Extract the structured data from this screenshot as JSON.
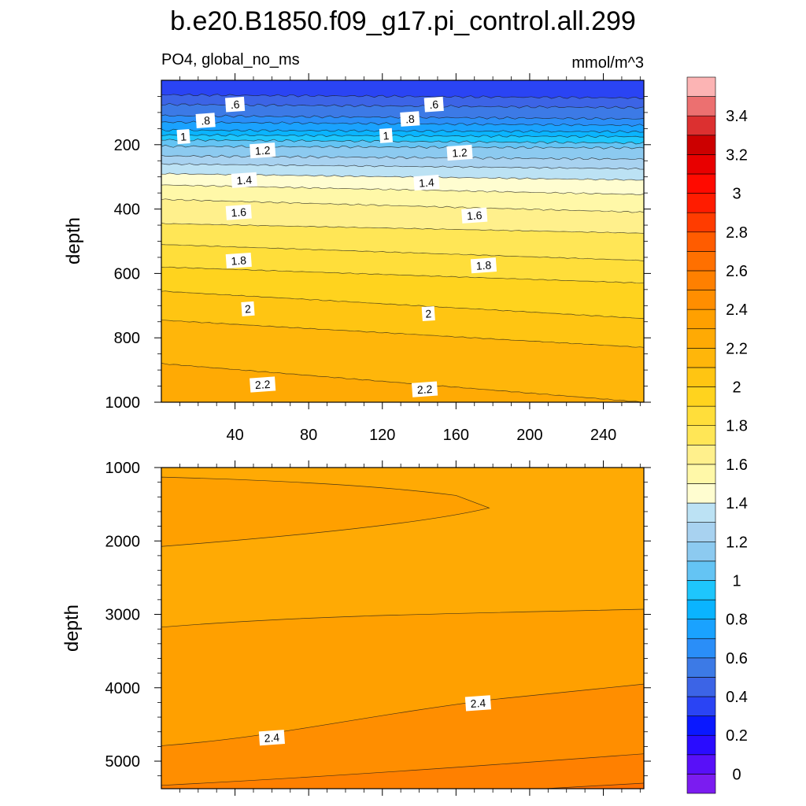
{
  "chart_data": {
    "type": "contour",
    "title": "b.e20.B1850.f09_g17.pi_control.all.299",
    "left_subtitle": "PO4, global_no_ms",
    "right_subtitle": "mmol/m^3",
    "ylabel": "depth",
    "xlim": [
      0,
      262
    ],
    "x_ticks": [
      "40",
      "80",
      "120",
      "160",
      "200",
      "240"
    ],
    "x_tick_values": [
      40,
      80,
      120,
      160,
      200,
      240
    ],
    "upper_panel": {
      "ylim": [
        0,
        1000
      ],
      "y_ticks": [
        "200",
        "400",
        "600",
        "800",
        "1000"
      ],
      "y_tick_values": [
        200,
        400,
        600,
        800,
        1000
      ],
      "contour_levels": [
        0.6,
        0.8,
        1.0,
        1.2,
        1.4,
        1.6,
        1.8,
        2.0,
        2.2
      ],
      "contour_depth_at_x0_x262": [
        [
          0.4,
          45,
          55
        ],
        [
          0.5,
          75,
          85
        ],
        [
          0.6,
          110,
          120
        ],
        [
          0.7,
          130,
          140
        ],
        [
          0.8,
          155,
          160
        ],
        [
          0.9,
          170,
          175
        ],
        [
          1.0,
          185,
          195
        ],
        [
          1.1,
          205,
          210
        ],
        [
          1.2,
          235,
          245
        ],
        [
          1.3,
          260,
          275
        ],
        [
          1.4,
          290,
          310
        ],
        [
          1.5,
          325,
          355
        ],
        [
          1.6,
          370,
          410
        ],
        [
          1.7,
          445,
          475
        ],
        [
          1.8,
          510,
          560
        ],
        [
          1.9,
          580,
          630
        ],
        [
          2.0,
          655,
          740
        ],
        [
          2.1,
          745,
          830
        ],
        [
          2.2,
          880,
          1000
        ]
      ],
      "labels": [
        {
          "text": ".6",
          "x": 40,
          "depth": 75
        },
        {
          "text": ".6",
          "x": 148,
          "depth": 75
        },
        {
          "text": ".8",
          "x": 24,
          "depth": 125
        },
        {
          "text": ".8",
          "x": 135,
          "depth": 120
        },
        {
          "text": "1",
          "x": 12,
          "depth": 175
        },
        {
          "text": "1",
          "x": 122,
          "depth": 172
        },
        {
          "text": "1.2",
          "x": 55,
          "depth": 218
        },
        {
          "text": "1.2",
          "x": 162,
          "depth": 225
        },
        {
          "text": "1.4",
          "x": 45,
          "depth": 310
        },
        {
          "text": "1.4",
          "x": 144,
          "depth": 318
        },
        {
          "text": "1.6",
          "x": 42,
          "depth": 410
        },
        {
          "text": "1.6",
          "x": 170,
          "depth": 420
        },
        {
          "text": "1.8",
          "x": 42,
          "depth": 560
        },
        {
          "text": "1.8",
          "x": 175,
          "depth": 575
        },
        {
          "text": "2",
          "x": 47,
          "depth": 710
        },
        {
          "text": "2",
          "x": 145,
          "depth": 725
        },
        {
          "text": "2.2",
          "x": 55,
          "depth": 945
        },
        {
          "text": "2.2",
          "x": 143,
          "depth": 960
        }
      ]
    },
    "lower_panel": {
      "ylim": [
        1000,
        5375
      ],
      "y_ticks": [
        "1000",
        "2000",
        "3000",
        "4000",
        "5000"
      ],
      "y_tick_values": [
        1000,
        2000,
        3000,
        4000,
        5000
      ],
      "contour_levels": [
        2.3,
        2.4,
        2.5
      ],
      "labels": [
        {
          "text": "2.4",
          "x": 60,
          "depth": 4680
        },
        {
          "text": "2.4",
          "x": 172,
          "depth": 4210
        }
      ]
    },
    "colorbar": {
      "labels": [
        "3.4",
        "3.2",
        "3",
        "2.8",
        "2.6",
        "2.4",
        "2.2",
        "2",
        "1.8",
        "1.6",
        "1.4",
        "1.2",
        "1",
        "0.8",
        "0.6",
        "0.4",
        "0.2",
        "0"
      ],
      "levels": [
        -0.1,
        0,
        0.1,
        0.2,
        0.3,
        0.4,
        0.5,
        0.6,
        0.7,
        0.8,
        0.9,
        1.0,
        1.1,
        1.2,
        1.3,
        1.4,
        1.5,
        1.6,
        1.7,
        1.8,
        1.9,
        2.0,
        2.1,
        2.2,
        2.3,
        2.4,
        2.5,
        2.6,
        2.7,
        2.8,
        2.9,
        3.0,
        3.1,
        3.2,
        3.3,
        3.4,
        3.5,
        3.6
      ],
      "colors": [
        "#7b1cf0",
        "#5810f8",
        "#2a0cff",
        "#0a18ff",
        "#2a44f4",
        "#3c64e6",
        "#3c7ae6",
        "#2a8ef8",
        "#1aa2ff",
        "#0ab4ff",
        "#1ec6fc",
        "#64c4f4",
        "#8ccaf0",
        "#a8d2f0",
        "#bce2f4",
        "#fffdd0",
        "#fff8a8",
        "#fff08c",
        "#ffe656",
        "#ffde3a",
        "#ffd31e",
        "#ffc512",
        "#ffb60a",
        "#ffaa04",
        "#ffa000",
        "#ff8e00",
        "#ff8000",
        "#ff7000",
        "#ff5c00",
        "#ff3c00",
        "#ff1c00",
        "#ff0a00",
        "#e80000",
        "#cc0000",
        "#dc3030",
        "#ec7070",
        "#fcb4b4"
      ]
    }
  }
}
